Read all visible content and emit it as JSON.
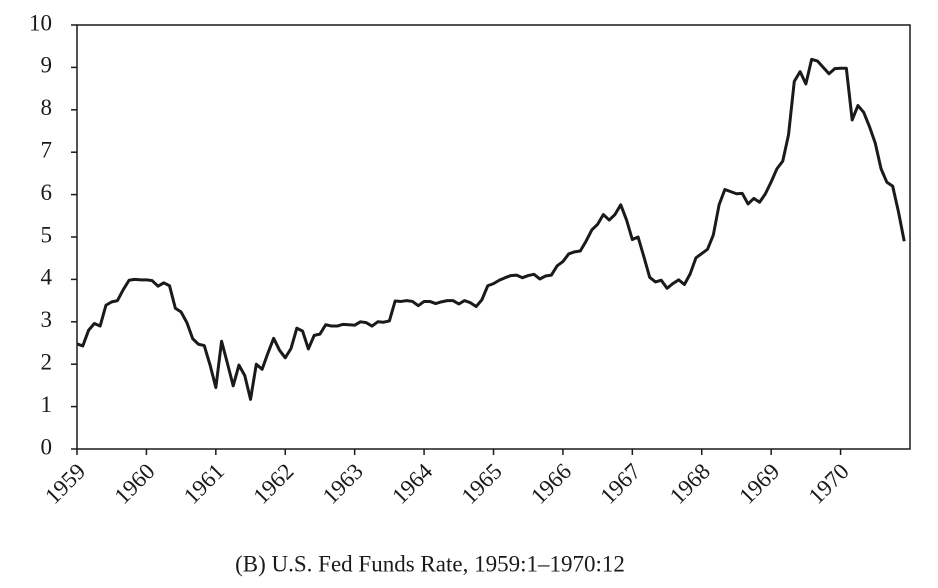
{
  "chart_data": {
    "type": "line",
    "caption": "(B) U.S. Fed Funds Rate, 1959:1–1970:12",
    "x": [
      1959,
      1959.083,
      1959.167,
      1959.25,
      1959.333,
      1959.417,
      1959.5,
      1959.583,
      1959.667,
      1959.75,
      1959.833,
      1959.917,
      1960,
      1960.083,
      1960.167,
      1960.25,
      1960.333,
      1960.417,
      1960.5,
      1960.583,
      1960.667,
      1960.75,
      1960.833,
      1960.917,
      1961,
      1961.083,
      1961.167,
      1961.25,
      1961.333,
      1961.417,
      1961.5,
      1961.583,
      1961.667,
      1961.75,
      1961.833,
      1961.917,
      1962,
      1962.083,
      1962.167,
      1962.25,
      1962.333,
      1962.417,
      1962.5,
      1962.583,
      1962.667,
      1962.75,
      1962.833,
      1962.917,
      1963,
      1963.083,
      1963.167,
      1963.25,
      1963.333,
      1963.417,
      1963.5,
      1963.583,
      1963.667,
      1963.75,
      1963.833,
      1963.917,
      1964,
      1964.083,
      1964.167,
      1964.25,
      1964.333,
      1964.417,
      1964.5,
      1964.583,
      1964.667,
      1964.75,
      1964.833,
      1964.917,
      1965,
      1965.083,
      1965.167,
      1965.25,
      1965.333,
      1965.417,
      1965.5,
      1965.583,
      1965.667,
      1965.75,
      1965.833,
      1965.917,
      1966,
      1966.083,
      1966.167,
      1966.25,
      1966.333,
      1966.417,
      1966.5,
      1966.583,
      1966.667,
      1966.75,
      1966.833,
      1966.917,
      1967,
      1967.083,
      1967.167,
      1967.25,
      1967.333,
      1967.417,
      1967.5,
      1967.583,
      1967.667,
      1967.75,
      1967.833,
      1967.917,
      1968,
      1968.083,
      1968.167,
      1968.25,
      1968.333,
      1968.417,
      1968.5,
      1968.583,
      1968.667,
      1968.75,
      1968.833,
      1968.917,
      1969,
      1969.083,
      1969.167,
      1969.25,
      1969.333,
      1969.417,
      1969.5,
      1969.583,
      1969.667,
      1969.75,
      1969.833,
      1969.917,
      1970,
      1970.083,
      1970.167,
      1970.25,
      1970.333,
      1970.417,
      1970.5,
      1970.583,
      1970.667,
      1970.75,
      1970.833,
      1970.917
    ],
    "values": [
      2.48,
      2.43,
      2.8,
      2.96,
      2.9,
      3.39,
      3.47,
      3.5,
      3.76,
      3.98,
      4.0,
      3.99,
      3.99,
      3.97,
      3.84,
      3.92,
      3.85,
      3.32,
      3.23,
      2.98,
      2.6,
      2.47,
      2.44,
      1.98,
      1.45,
      2.54,
      2.02,
      1.49,
      1.98,
      1.73,
      1.17,
      2.0,
      1.88,
      2.26,
      2.61,
      2.33,
      2.15,
      2.37,
      2.85,
      2.78,
      2.36,
      2.68,
      2.71,
      2.93,
      2.9,
      2.9,
      2.94,
      2.93,
      2.92,
      3.0,
      2.98,
      2.9,
      3.0,
      2.99,
      3.02,
      3.49,
      3.48,
      3.5,
      3.48,
      3.38,
      3.48,
      3.48,
      3.43,
      3.47,
      3.5,
      3.5,
      3.42,
      3.5,
      3.45,
      3.36,
      3.52,
      3.85,
      3.9,
      3.98,
      4.04,
      4.09,
      4.1,
      4.04,
      4.09,
      4.12,
      4.01,
      4.08,
      4.1,
      4.32,
      4.42,
      4.6,
      4.65,
      4.67,
      4.9,
      5.17,
      5.3,
      5.53,
      5.4,
      5.53,
      5.76,
      5.4,
      4.94,
      5.0,
      4.53,
      4.05,
      3.94,
      3.98,
      3.79,
      3.9,
      3.99,
      3.88,
      4.13,
      4.51,
      4.61,
      4.71,
      5.05,
      5.76,
      6.12,
      6.07,
      6.02,
      6.03,
      5.78,
      5.91,
      5.82,
      6.02,
      6.3,
      6.61,
      6.79,
      7.41,
      8.67,
      8.9,
      8.61,
      9.19,
      9.15,
      9.0,
      8.85,
      8.97,
      8.98,
      8.98,
      7.76,
      8.1,
      7.94,
      7.6,
      7.21,
      6.61,
      6.29,
      6.2,
      5.6,
      4.9
    ],
    "color": "#1a1a1a",
    "xlim": [
      1959,
      1971
    ],
    "xticks": [
      1959,
      1960,
      1961,
      1962,
      1963,
      1964,
      1965,
      1966,
      1967,
      1968,
      1969,
      1970
    ],
    "ylim": [
      0,
      10
    ],
    "yticks": [
      0,
      1,
      2,
      3,
      4,
      5,
      6,
      7,
      8,
      9,
      10
    ]
  }
}
